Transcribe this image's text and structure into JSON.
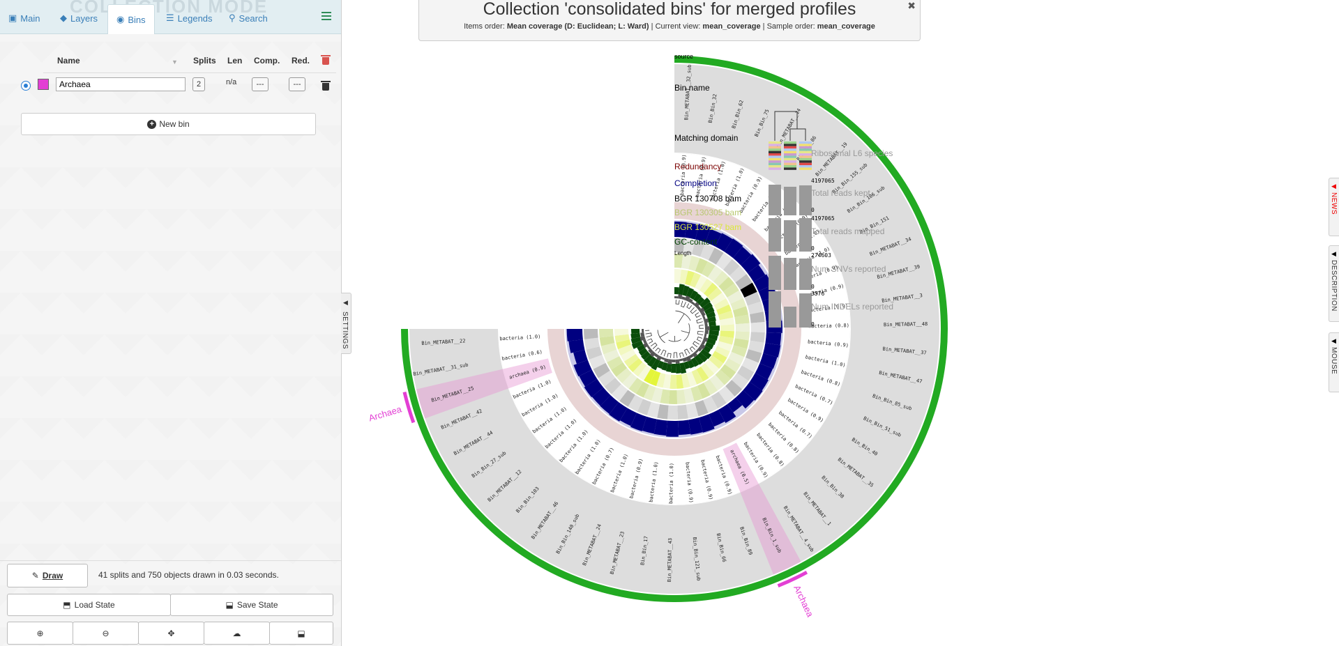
{
  "tabs": [
    {
      "label": "Main",
      "icon": "image-icon"
    },
    {
      "label": "Layers",
      "icon": "layers-icon"
    },
    {
      "label": "Bins",
      "icon": "bin-icon"
    },
    {
      "label": "Legends",
      "icon": "legend-icon"
    },
    {
      "label": "Search",
      "icon": "search-icon"
    }
  ],
  "watermark": "COLLECTION MODE",
  "bins_table": {
    "headers": {
      "name": "Name",
      "splits": "Splits",
      "len": "Len",
      "comp": "Comp.",
      "red": "Red."
    },
    "rows": [
      {
        "color": "#e33fd4",
        "name": "Archaea",
        "splits": "2",
        "len": "n/a",
        "comp": "---",
        "red": "---"
      }
    ]
  },
  "new_bin_label": "New bin",
  "draw_label": "Draw",
  "draw_status": "41 splits and 750 objects drawn in 0.03 seconds.",
  "load_state_label": "Load State",
  "save_state_label": "Save State",
  "settings_label": "SETTINGS",
  "right_tabs": [
    "NEWS",
    "DESCRIPTION",
    "MOUSE"
  ],
  "title": {
    "main": "Collection 'consolidated bins' for merged profiles",
    "items_order_label": "Items order:",
    "items_order": "Mean coverage (D: Euclidean; L: Ward)",
    "current_view_label": "Current view:",
    "current_view": "mean_coverage",
    "sample_order_label": "Sample order:",
    "sample_order": "mean_coverage",
    "sep": "|"
  },
  "layers": [
    {
      "label": "source",
      "color": "#000000"
    },
    {
      "label": "Bin name",
      "color": "#000000"
    },
    {
      "label": "Matching domain",
      "color": "#000000"
    },
    {
      "label": "Redundancy",
      "color": "#7a0000"
    },
    {
      "label": "Completion",
      "color": "#000080"
    },
    {
      "label": "BGR 130708 bam",
      "color": "#000000"
    },
    {
      "label": "BGR 130305 bam",
      "color": "#b8c870"
    },
    {
      "label": "BGR 130527 bam",
      "color": "#d9e83a"
    },
    {
      "label": "GC-content",
      "color": "#004000"
    },
    {
      "label": "Length",
      "color": "#000000"
    }
  ],
  "bars": [
    {
      "label": "Ribosomal L6 species",
      "max": "",
      "min": ""
    },
    {
      "label": "Total reads kept",
      "max": "4197065",
      "min": "0"
    },
    {
      "label": "Total reads mapped",
      "max": "4197065",
      "min": "0"
    },
    {
      "label": "Num SNVs reported",
      "max": "274603",
      "min": "0"
    },
    {
      "label": "Num INDELs reported",
      "max": "3576",
      "min": "0"
    }
  ],
  "bins_on_circle": [
    "Archaea",
    "Archaea"
  ],
  "items": [
    {
      "name": "Bin_METABAT__32_sub",
      "domain": "bacteria (0.9)"
    },
    {
      "name": "Bin_Bin_32",
      "domain": "bacteria (0.9)"
    },
    {
      "name": "Bin_Bin_62",
      "domain": "bacteria (1.0)"
    },
    {
      "name": "Bin_Bin_75",
      "domain": "bacteria (1.0)"
    },
    {
      "name": "Bin_METABAT__14",
      "domain": "bacteria (0.9)"
    },
    {
      "name": "Bin_Bin_86",
      "domain": "bacteria (0.8)"
    },
    {
      "name": "Bin_METABAT__19",
      "domain": "bacteria (1.0)"
    },
    {
      "name": "Bin_Bin_155_sub",
      "domain": "bacteria (0.9)"
    },
    {
      "name": "Bin_Bin_106_sub",
      "domain": "bacteria (1.0)"
    },
    {
      "name": "Bin_Bin_151",
      "domain": "bacteria (1.0)"
    },
    {
      "name": "Bin_METABAT__34",
      "domain": "bacteria (0.9)"
    },
    {
      "name": "Bin_METABAT__39",
      "domain": "bacteria (0.9)"
    },
    {
      "name": "Bin_METABAT__3",
      "domain": "bacteria (0.9)"
    },
    {
      "name": "Bin_METABAT__48",
      "domain": "bacteria (0.8)"
    },
    {
      "name": "Bin_METABAT__37",
      "domain": "bacteria (0.9)"
    },
    {
      "name": "Bin_METABAT__47",
      "domain": "bacteria (1.0)"
    },
    {
      "name": "Bin_Bin_85_sub",
      "domain": "bacteria (0.8)"
    },
    {
      "name": "Bin_Bin_51_sub",
      "domain": "bacteria (0.7)"
    },
    {
      "name": "Bin_Bin_40",
      "domain": "bacteria (0.9)"
    },
    {
      "name": "Bin_METABAT__35",
      "domain": "bacteria (0.7)"
    },
    {
      "name": "Bin_Bin_38",
      "domain": "bacteria (0.8)"
    },
    {
      "name": "Bin_METABAT__1",
      "domain": "bacteria (0.8)"
    },
    {
      "name": "Bin_METABAT__4_sub",
      "domain": "bacteria (0.9)"
    },
    {
      "name": "Bin_Bin_1_sub",
      "domain": "archaea (0.5)"
    },
    {
      "name": "Bin_Bin_89",
      "domain": "bacteria (0.9)"
    },
    {
      "name": "Bin_Bin_66",
      "domain": "bacteria (0.9)"
    },
    {
      "name": "Bin_Bin_121_sub",
      "domain": "bacteria (0.9)"
    },
    {
      "name": "Bin_METABAT__43",
      "domain": "bacteria (1.0)"
    },
    {
      "name": "Bin_Bin_17",
      "domain": "bacteria (1.0)"
    },
    {
      "name": "Bin_METABAT__23",
      "domain": "bacteria (0.9)"
    },
    {
      "name": "Bin_METABAT__24",
      "domain": "bacteria (1.0)"
    },
    {
      "name": "Bin_Bin_140_sub",
      "domain": "bacteria (0.7)"
    },
    {
      "name": "Bin_METABAT__46",
      "domain": "bacteria (1.0)"
    },
    {
      "name": "Bin_Bin_103",
      "domain": "bacteria (1.0)"
    },
    {
      "name": "Bin_METABAT__12",
      "domain": "bacteria (1.0)"
    },
    {
      "name": "Bin_Bin_27_sub",
      "domain": "bacteria (1.0)"
    },
    {
      "name": "Bin_METABAT__44",
      "domain": "bacteria (1.0)"
    },
    {
      "name": "Bin_METABAT__42",
      "domain": "bacteria (1.0)"
    },
    {
      "name": "Bin_METABAT__25",
      "domain": "archaea (0.9)"
    },
    {
      "name": "Bin_METABAT__31_sub",
      "domain": "bacteria (0.6)"
    },
    {
      "name": "Bin_METABAT__22",
      "domain": "bacteria (1.0)"
    }
  ],
  "colors": {
    "tab_text": "#3a7fb8",
    "source": "#22aa22",
    "completion": "#000080",
    "redundancy": "#7a0000",
    "gc": "#0b4d0b",
    "bin": "#e33fd4",
    "layer_bg": "#dddddd",
    "trash_red": "#d9534f"
  }
}
